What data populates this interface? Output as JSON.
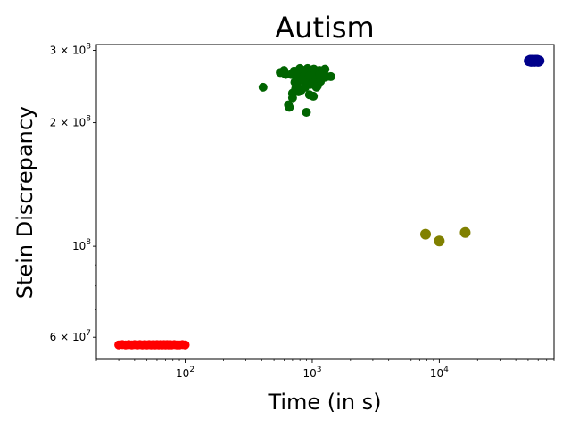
{
  "chart_data": {
    "type": "scatter",
    "title": "Autism",
    "xlabel": "Time (in s)",
    "ylabel": "Stein Discrepancy",
    "xscale": "log",
    "yscale": "log",
    "xlim": [
      20,
      80000
    ],
    "ylim": [
      53000000,
      310000000
    ],
    "grid": false,
    "legend": "none",
    "x_ticks": [
      {
        "value": 100,
        "base": "10",
        "exp": "2"
      },
      {
        "value": 1000,
        "base": "10",
        "exp": "3"
      },
      {
        "value": 10000,
        "base": "10",
        "exp": "4"
      }
    ],
    "y_ticks": [
      {
        "value": 60000000,
        "mant": "6 × 10",
        "exp": "7"
      },
      {
        "value": 100000000,
        "mant": "10",
        "exp": "8"
      },
      {
        "value": 200000000,
        "mant": "2 × 10",
        "exp": "8"
      },
      {
        "value": 300000000,
        "mant": "3 × 10",
        "exp": "8"
      }
    ],
    "series": [
      {
        "color": "#ff0000",
        "edge": "#ff0000",
        "marker_size": 4.5,
        "points": [
          [
            30,
            57500000
          ],
          [
            32,
            57600000
          ],
          [
            34,
            57500000
          ],
          [
            36,
            57600000
          ],
          [
            38,
            57500000
          ],
          [
            40,
            57600000
          ],
          [
            42,
            57500000
          ],
          [
            44,
            57600000
          ],
          [
            46,
            57500000
          ],
          [
            48,
            57600000
          ],
          [
            50,
            57500000
          ],
          [
            52,
            57600000
          ],
          [
            54,
            57500000
          ],
          [
            56,
            57600000
          ],
          [
            58,
            57500000
          ],
          [
            60,
            57600000
          ],
          [
            62,
            57500000
          ],
          [
            64,
            57600000
          ],
          [
            66,
            57500000
          ],
          [
            68,
            57600000
          ],
          [
            70,
            57500000
          ],
          [
            72,
            57600000
          ],
          [
            74,
            57500000
          ],
          [
            76,
            57600000
          ],
          [
            78,
            57500000
          ],
          [
            82,
            57600000
          ],
          [
            86,
            57500000
          ],
          [
            90,
            57500000
          ],
          [
            95,
            57600000
          ],
          [
            100,
            57500000
          ]
        ]
      },
      {
        "color": "#006400",
        "edge": "#006400",
        "marker_size": 4.5,
        "points": [
          [
            410,
            244000000
          ],
          [
            560,
            265000000
          ],
          [
            600,
            268000000
          ],
          [
            620,
            262000000
          ],
          [
            650,
            221000000
          ],
          [
            660,
            218000000
          ],
          [
            680,
            262000000
          ],
          [
            700,
            236000000
          ],
          [
            720,
            267000000
          ],
          [
            730,
            251000000
          ],
          [
            740,
            242000000
          ],
          [
            760,
            247000000
          ],
          [
            780,
            259000000
          ],
          [
            800,
            271000000
          ],
          [
            810,
            264000000
          ],
          [
            820,
            240000000
          ],
          [
            840,
            256000000
          ],
          [
            850,
            266000000
          ],
          [
            870,
            252000000
          ],
          [
            880,
            244000000
          ],
          [
            900,
            212000000
          ],
          [
            910,
            262000000
          ],
          [
            920,
            271000000
          ],
          [
            940,
            258000000
          ],
          [
            950,
            234000000
          ],
          [
            960,
            268000000
          ],
          [
            980,
            248000000
          ],
          [
            1000,
            263000000
          ],
          [
            1020,
            232000000
          ],
          [
            1030,
            270000000
          ],
          [
            1050,
            255000000
          ],
          [
            1070,
            265000000
          ],
          [
            1100,
            246000000
          ],
          [
            1120,
            260000000
          ],
          [
            1140,
            268000000
          ],
          [
            1160,
            252000000
          ],
          [
            1200,
            266000000
          ],
          [
            1230,
            262000000
          ],
          [
            1260,
            270000000
          ],
          [
            1300,
            259000000
          ],
          [
            1400,
            259000000
          ],
          [
            700,
            230000000
          ],
          [
            780,
            238000000
          ],
          [
            860,
            268000000
          ],
          [
            990,
            257000000
          ],
          [
            1080,
            244000000
          ],
          [
            1150,
            262000000
          ],
          [
            600,
            264000000
          ],
          [
            1250,
            258000000
          ],
          [
            950,
            260000000
          ]
        ]
      },
      {
        "color": "#808000",
        "edge": "#808000",
        "marker_size": 5.5,
        "points": [
          [
            7800,
            107000000
          ],
          [
            10000,
            103000000
          ],
          [
            16000,
            108000000
          ]
        ]
      },
      {
        "color": "#00008b",
        "edge": "#00008b",
        "marker_size": 5.5,
        "points": [
          [
            51000,
            283000000
          ],
          [
            52000,
            284000000
          ],
          [
            53000,
            282000000
          ],
          [
            54000,
            284000000
          ],
          [
            55000,
            283000000
          ],
          [
            56000,
            282000000
          ],
          [
            57000,
            284000000
          ],
          [
            58000,
            283000000
          ],
          [
            59000,
            284000000
          ],
          [
            60000,
            282000000
          ],
          [
            61000,
            283000000
          ]
        ]
      }
    ]
  }
}
